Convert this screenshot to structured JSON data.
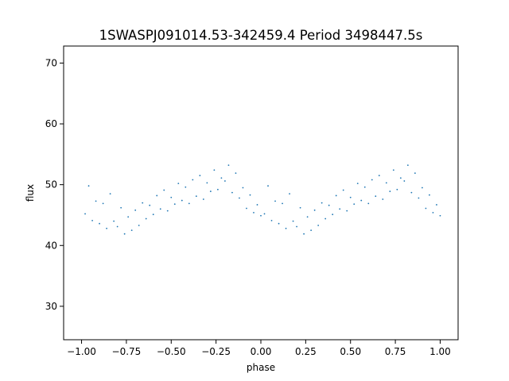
{
  "chart_data": {
    "type": "scatter",
    "title": "1SWASPJ091014.53-342459.4 Period 3498447.5s",
    "xlabel": "phase",
    "ylabel": "flux",
    "xlim": [
      -1.1,
      1.1
    ],
    "ylim": [
      24.5,
      72.8
    ],
    "x_ticks": [
      -1.0,
      -0.75,
      -0.5,
      -0.25,
      0.0,
      0.25,
      0.5,
      0.75,
      1.0
    ],
    "x_tick_labels": [
      "−1.00",
      "−0.75",
      "−0.50",
      "−0.25",
      "0.00",
      "0.25",
      "0.50",
      "0.75",
      "1.00"
    ],
    "y_ticks": [
      30,
      40,
      50,
      60,
      70
    ],
    "y_tick_labels": [
      "30",
      "40",
      "50",
      "60",
      "70"
    ],
    "grid": false,
    "legend": "none",
    "marker_color": "#1f77b4",
    "series": [
      {
        "phase_range": [
          -1.0,
          1.0
        ],
        "period_in_phase": 1.0,
        "points": [
          [
            -0.98,
            45.2
          ],
          [
            -0.96,
            49.8
          ],
          [
            -0.94,
            44.1
          ],
          [
            -0.92,
            47.3
          ],
          [
            -0.9,
            43.6
          ],
          [
            -0.88,
            46.9
          ],
          [
            -0.86,
            42.8
          ],
          [
            -0.84,
            48.5
          ],
          [
            -0.82,
            44.0
          ],
          [
            -0.8,
            43.1
          ],
          [
            -0.78,
            46.2
          ],
          [
            -0.76,
            41.9
          ],
          [
            -0.74,
            44.7
          ],
          [
            -0.72,
            42.5
          ],
          [
            -0.7,
            45.8
          ],
          [
            -0.68,
            43.3
          ],
          [
            -0.66,
            47.0
          ],
          [
            -0.64,
            44.4
          ],
          [
            -0.62,
            46.6
          ],
          [
            -0.6,
            45.1
          ],
          [
            -0.58,
            48.2
          ],
          [
            -0.56,
            46.0
          ],
          [
            -0.54,
            49.1
          ],
          [
            -0.52,
            45.7
          ],
          [
            -0.5,
            47.9
          ],
          [
            -0.48,
            46.8
          ],
          [
            -0.46,
            50.2
          ],
          [
            -0.44,
            47.4
          ],
          [
            -0.42,
            49.6
          ],
          [
            -0.4,
            46.9
          ],
          [
            -0.38,
            50.8
          ],
          [
            -0.36,
            48.1
          ],
          [
            -0.34,
            51.5
          ],
          [
            -0.32,
            47.6
          ],
          [
            -0.3,
            50.3
          ],
          [
            -0.28,
            48.9
          ],
          [
            -0.26,
            52.4
          ],
          [
            -0.24,
            49.2
          ],
          [
            -0.22,
            51.1
          ],
          [
            -0.2,
            50.6
          ],
          [
            -0.18,
            53.2
          ],
          [
            -0.16,
            48.7
          ],
          [
            -0.14,
            51.9
          ],
          [
            -0.12,
            47.8
          ],
          [
            -0.1,
            49.5
          ],
          [
            -0.08,
            46.1
          ],
          [
            -0.06,
            48.3
          ],
          [
            -0.04,
            45.4
          ],
          [
            -0.02,
            46.7
          ],
          [
            0.0,
            44.9
          ],
          [
            0.02,
            45.2
          ],
          [
            0.04,
            49.8
          ],
          [
            0.06,
            44.1
          ],
          [
            0.08,
            47.3
          ],
          [
            0.1,
            43.6
          ],
          [
            0.12,
            46.9
          ],
          [
            0.14,
            42.8
          ],
          [
            0.16,
            48.5
          ],
          [
            0.18,
            44.0
          ],
          [
            0.2,
            43.1
          ],
          [
            0.22,
            46.2
          ],
          [
            0.24,
            41.9
          ],
          [
            0.26,
            44.7
          ],
          [
            0.28,
            42.5
          ],
          [
            0.3,
            45.8
          ],
          [
            0.32,
            43.3
          ],
          [
            0.34,
            47.0
          ],
          [
            0.36,
            44.4
          ],
          [
            0.38,
            46.6
          ],
          [
            0.4,
            45.1
          ],
          [
            0.42,
            48.2
          ],
          [
            0.44,
            46.0
          ],
          [
            0.46,
            49.1
          ],
          [
            0.48,
            45.7
          ],
          [
            0.5,
            47.9
          ],
          [
            0.52,
            46.8
          ],
          [
            0.54,
            50.2
          ],
          [
            0.56,
            47.4
          ],
          [
            0.58,
            49.6
          ],
          [
            0.6,
            46.9
          ],
          [
            0.62,
            50.8
          ],
          [
            0.64,
            48.1
          ],
          [
            0.66,
            51.5
          ],
          [
            0.68,
            47.6
          ],
          [
            0.7,
            50.3
          ],
          [
            0.72,
            48.9
          ],
          [
            0.74,
            52.4
          ],
          [
            0.76,
            49.2
          ],
          [
            0.78,
            51.1
          ],
          [
            0.8,
            50.6
          ],
          [
            0.82,
            53.2
          ],
          [
            0.84,
            48.7
          ],
          [
            0.86,
            51.9
          ],
          [
            0.88,
            47.8
          ],
          [
            0.9,
            49.5
          ],
          [
            0.92,
            46.1
          ],
          [
            0.94,
            48.3
          ],
          [
            0.96,
            45.4
          ],
          [
            0.98,
            46.7
          ],
          [
            1.0,
            44.9
          ]
        ]
      }
    ]
  }
}
